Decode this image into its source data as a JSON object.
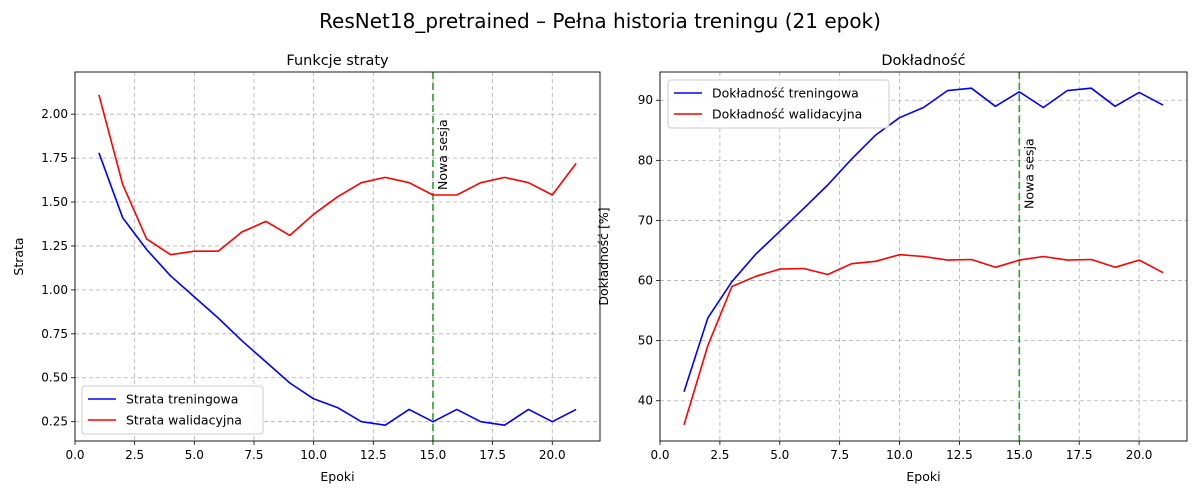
{
  "suptitle": "ResNet18_pretrained – Pełna historia treningu (21 epok)",
  "chart_data": [
    {
      "type": "line",
      "title": "Funkcje straty",
      "xlabel": "Epoki",
      "ylabel": "Strata",
      "xlim": [
        0,
        22
      ],
      "ylim": [
        0.14,
        2.24
      ],
      "xticks": [
        0.0,
        2.5,
        5.0,
        7.5,
        10.0,
        12.5,
        15.0,
        17.5,
        20.0
      ],
      "xtick_labels": [
        "0.0",
        "2.5",
        "5.0",
        "7.5",
        "10.0",
        "12.5",
        "15.0",
        "17.5",
        "20.0"
      ],
      "yticks": [
        0.25,
        0.5,
        0.75,
        1.0,
        1.25,
        1.5,
        1.75,
        2.0
      ],
      "ytick_labels": [
        "0.25",
        "0.50",
        "0.75",
        "1.00",
        "1.25",
        "1.50",
        "1.75",
        "2.00"
      ],
      "grid": true,
      "legend_position": "lower-left",
      "x": [
        1,
        2,
        3,
        4,
        5,
        6,
        7,
        8,
        9,
        10,
        11,
        12,
        13,
        14,
        15,
        16,
        17,
        18,
        19,
        20,
        21
      ],
      "series": [
        {
          "name": "Strata treningowa",
          "color": "#0000ff",
          "values": [
            1.78,
            1.41,
            1.23,
            1.08,
            0.96,
            0.84,
            0.71,
            0.59,
            0.47,
            0.38,
            0.33,
            0.25,
            0.23,
            0.32,
            0.25,
            0.32,
            0.25,
            0.23,
            0.32,
            0.25,
            0.32
          ]
        },
        {
          "name": "Strata walidacyjna",
          "color": "#ff0000",
          "values": [
            2.11,
            1.6,
            1.29,
            1.2,
            1.22,
            1.22,
            1.33,
            1.39,
            1.31,
            1.43,
            1.53,
            1.61,
            1.64,
            1.61,
            1.54,
            1.54,
            1.61,
            1.64,
            1.61,
            1.54,
            1.72
          ]
        }
      ],
      "vline": {
        "x": 15,
        "label": "Nowa sesja",
        "color": "#2ca02c"
      }
    },
    {
      "type": "line",
      "title": "Dokładność",
      "xlabel": "Epoki",
      "ylabel": "Dokładność [%]",
      "xlim": [
        0,
        22
      ],
      "ylim": [
        33.3,
        94.7
      ],
      "xticks": [
        0.0,
        2.5,
        5.0,
        7.5,
        10.0,
        12.5,
        15.0,
        17.5,
        20.0
      ],
      "xtick_labels": [
        "0.0",
        "2.5",
        "5.0",
        "7.5",
        "10.0",
        "12.5",
        "15.0",
        "17.5",
        "20.0"
      ],
      "yticks": [
        40,
        50,
        60,
        70,
        80,
        90
      ],
      "ytick_labels": [
        "40",
        "50",
        "60",
        "70",
        "80",
        "90"
      ],
      "grid": true,
      "legend_position": "upper-left",
      "x": [
        1,
        2,
        3,
        4,
        5,
        6,
        7,
        8,
        9,
        10,
        11,
        12,
        13,
        14,
        15,
        16,
        17,
        18,
        19,
        20,
        21
      ],
      "series": [
        {
          "name": "Dokładność treningowa",
          "color": "#0000ff",
          "values": [
            41.5,
            53.8,
            59.8,
            64.4,
            68.2,
            72.0,
            75.9,
            80.2,
            84.2,
            87.1,
            88.8,
            91.6,
            92.0,
            89.0,
            91.4,
            88.8,
            91.6,
            92.0,
            89.0,
            91.3,
            89.2
          ]
        },
        {
          "name": "Dokładność walidacyjna",
          "color": "#ff0000",
          "values": [
            36.0,
            49.2,
            59.0,
            60.7,
            61.9,
            62.0,
            61.0,
            62.8,
            63.2,
            64.3,
            64.0,
            63.4,
            63.5,
            62.2,
            63.4,
            64.0,
            63.4,
            63.5,
            62.2,
            63.4,
            61.3
          ]
        }
      ],
      "vline": {
        "x": 15,
        "label": "Nowa sesja",
        "color": "#2ca02c"
      }
    }
  ]
}
